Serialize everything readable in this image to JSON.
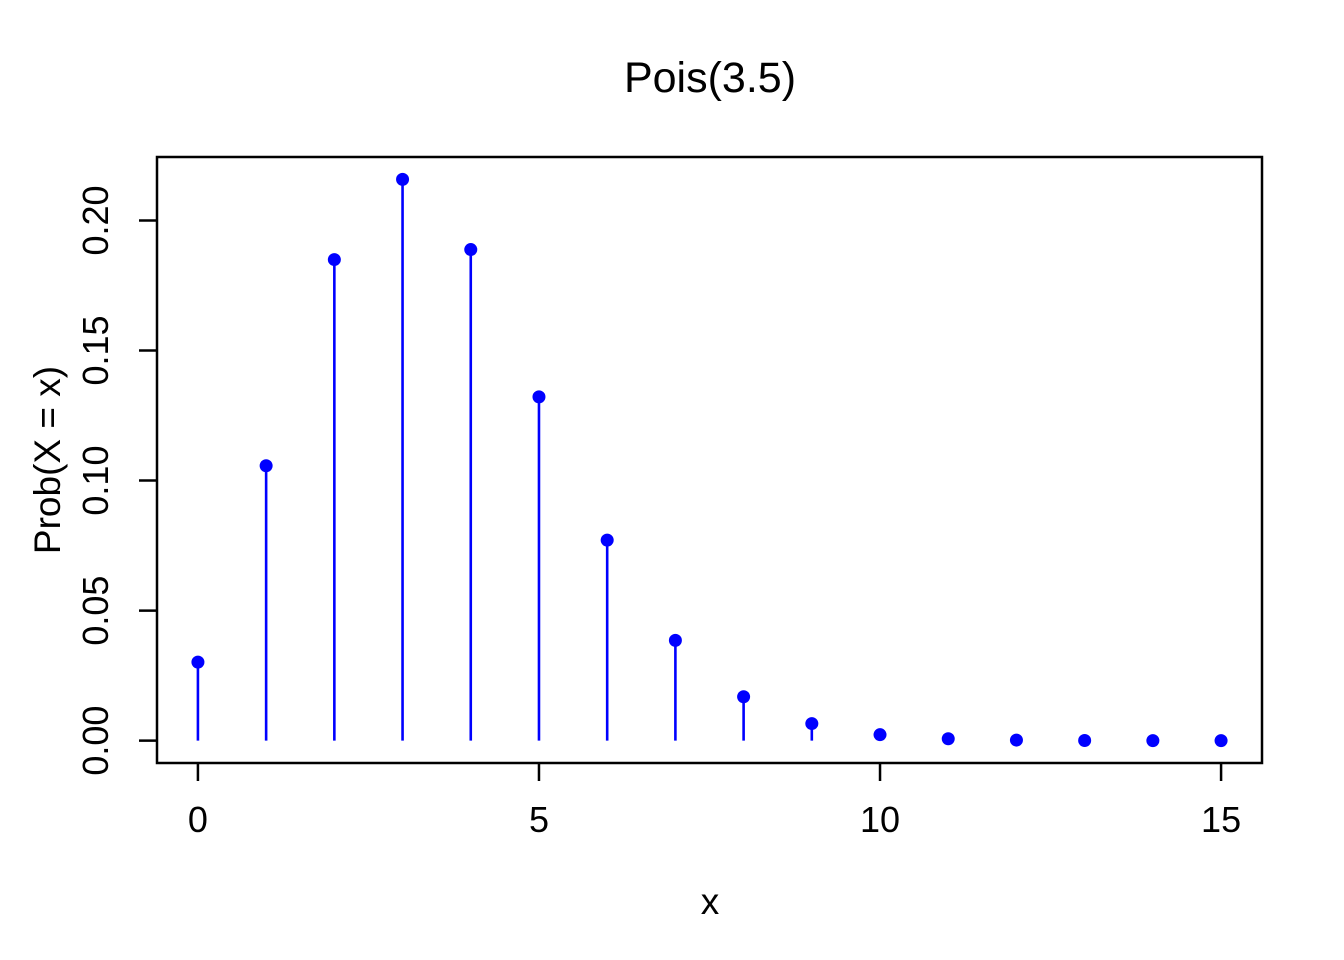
{
  "chart_data": {
    "type": "stem",
    "title": "Pois(3.5)",
    "xlabel": "x",
    "ylabel": "Prob(X = x)",
    "x": [
      0,
      1,
      2,
      3,
      4,
      5,
      6,
      7,
      8,
      9,
      10,
      11,
      12,
      13,
      14,
      15
    ],
    "y": [
      0.030197,
      0.105691,
      0.184959,
      0.215785,
      0.188812,
      0.132169,
      0.077098,
      0.038549,
      0.016865,
      0.006559,
      0.002296,
      0.00073,
      0.000213,
      5.7e-05,
      1.4e-05,
      3e-06
    ],
    "xlim": [
      -0.6,
      15.6
    ],
    "ylim": [
      -0.0086,
      0.2244
    ],
    "xticks": {
      "values": [
        0,
        5,
        10,
        15
      ],
      "labels": [
        "0",
        "5",
        "10",
        "15"
      ]
    },
    "yticks": {
      "values": [
        0,
        0.05,
        0.1,
        0.15,
        0.2
      ],
      "labels": [
        "0.00",
        "0.05",
        "0.10",
        "0.15",
        "0.20"
      ]
    },
    "grid": false,
    "marker": "filled-circle",
    "colors": {
      "point": "#0000ff",
      "stem": "#0000ff",
      "axis": "#000000",
      "text": "#000000",
      "background": "#ffffff"
    }
  }
}
